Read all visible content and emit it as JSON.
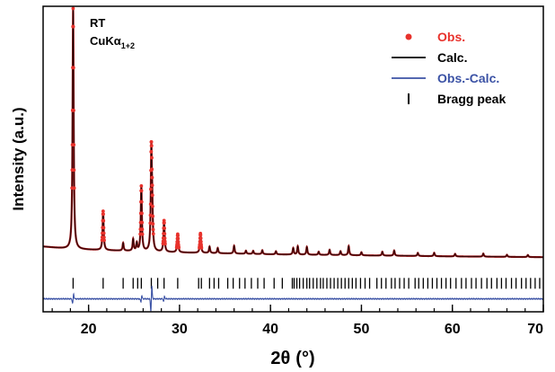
{
  "chart_data": {
    "type": "line",
    "xlabel_main": "2θ",
    "xlabel_unit": "(°)",
    "ylabel": "Intensity (a.u.)",
    "xlim": [
      15,
      70
    ],
    "xticks_major": [
      20,
      30,
      40,
      50,
      60,
      70
    ],
    "xticks_minor_step": 2,
    "y_ticks_shown": false,
    "grid": false,
    "annotations": {
      "temperature": "RT",
      "radiation_main": "CuKα",
      "radiation_sub": "1+2"
    },
    "legend": {
      "placement": "top-right",
      "entries": [
        {
          "label": "Obs.",
          "marker": "dot",
          "color": "#e8322c"
        },
        {
          "label": "Calc.",
          "marker": "line",
          "color": "#000000"
        },
        {
          "label": "Obs.-Calc.",
          "marker": "line",
          "color": "#3b52a5"
        },
        {
          "label": "Bragg peak",
          "marker": "tick",
          "color": "#000000"
        }
      ]
    },
    "colors": {
      "obs": "#e8322c",
      "obs_curve": "#8c1214",
      "calc": "#000000",
      "diff": "#3b52a5",
      "bragg": "#000000"
    },
    "background_intensity": {
      "x": [
        15,
        18,
        25,
        30,
        40,
        50,
        60,
        70
      ],
      "y": [
        7.2,
        6.2,
        5.4,
        4.9,
        4.2,
        3.8,
        3.4,
        3.1
      ]
    },
    "peaks": [
      {
        "x": 18.3,
        "h": 93
      },
      {
        "x": 21.6,
        "h": 15
      },
      {
        "x": 23.8,
        "h": 3
      },
      {
        "x": 24.9,
        "h": 4.5
      },
      {
        "x": 25.3,
        "h": 3
      },
      {
        "x": 25.8,
        "h": 25
      },
      {
        "x": 26.9,
        "h": 38
      },
      {
        "x": 27.0,
        "h": 13
      },
      {
        "x": 28.3,
        "h": 12
      },
      {
        "x": 29.8,
        "h": 7
      },
      {
        "x": 32.3,
        "h": 7.5
      },
      {
        "x": 33.3,
        "h": 2.5
      },
      {
        "x": 34.2,
        "h": 2
      },
      {
        "x": 36.0,
        "h": 3
      },
      {
        "x": 37.3,
        "h": 1.2
      },
      {
        "x": 38.1,
        "h": 1.2
      },
      {
        "x": 39.1,
        "h": 1.5
      },
      {
        "x": 40.6,
        "h": 1.2
      },
      {
        "x": 42.5,
        "h": 2.5
      },
      {
        "x": 43.0,
        "h": 3.2
      },
      {
        "x": 44.0,
        "h": 3
      },
      {
        "x": 45.3,
        "h": 1.2
      },
      {
        "x": 46.5,
        "h": 2
      },
      {
        "x": 47.7,
        "h": 1.5
      },
      {
        "x": 48.6,
        "h": 3.5
      },
      {
        "x": 50.0,
        "h": 1.2
      },
      {
        "x": 52.3,
        "h": 1.5
      },
      {
        "x": 53.6,
        "h": 2
      },
      {
        "x": 56.2,
        "h": 1.2
      },
      {
        "x": 58.0,
        "h": 1.3
      },
      {
        "x": 60.3,
        "h": 1
      },
      {
        "x": 63.4,
        "h": 1.2
      },
      {
        "x": 66.0,
        "h": 0.8
      },
      {
        "x": 68.3,
        "h": 0.8
      }
    ],
    "bragg_positions": [
      18.3,
      21.6,
      23.8,
      24.9,
      25.4,
      25.8,
      26.9,
      27.6,
      28.3,
      29.8,
      32.1,
      32.4,
      33.3,
      33.8,
      34.3,
      35.3,
      35.9,
      36.6,
      37.2,
      37.9,
      38.6,
      39.3,
      40.4,
      41.3,
      42.4,
      42.6,
      42.9,
      43.2,
      43.6,
      44.0,
      44.3,
      44.7,
      45.1,
      45.5,
      45.8,
      46.2,
      46.6,
      47.0,
      47.4,
      47.8,
      48.2,
      48.6,
      49.0,
      49.4,
      49.9,
      50.4,
      50.9,
      51.7,
      52.2,
      52.7,
      53.3,
      53.7,
      54.2,
      54.7,
      55.2,
      55.9,
      56.3,
      56.8,
      57.3,
      57.8,
      58.3,
      58.8,
      59.3,
      59.8,
      60.4,
      61.0,
      61.5,
      62.1,
      62.6,
      63.2,
      63.8,
      64.3,
      64.9,
      65.4,
      65.9,
      66.5,
      67.0,
      67.6,
      68.1,
      68.6,
      69.1,
      69.6
    ],
    "difference_features": [
      {
        "x": 18.3,
        "amplitude": 3
      },
      {
        "x": 25.8,
        "amplitude": 2
      },
      {
        "x": 26.9,
        "amplitude": 8
      },
      {
        "x": 28.3,
        "amplitude": 1.5
      }
    ],
    "y_offsets": {
      "bragg": -7,
      "diff_baseline": -13
    },
    "ylim": [
      -18,
      100
    ]
  }
}
